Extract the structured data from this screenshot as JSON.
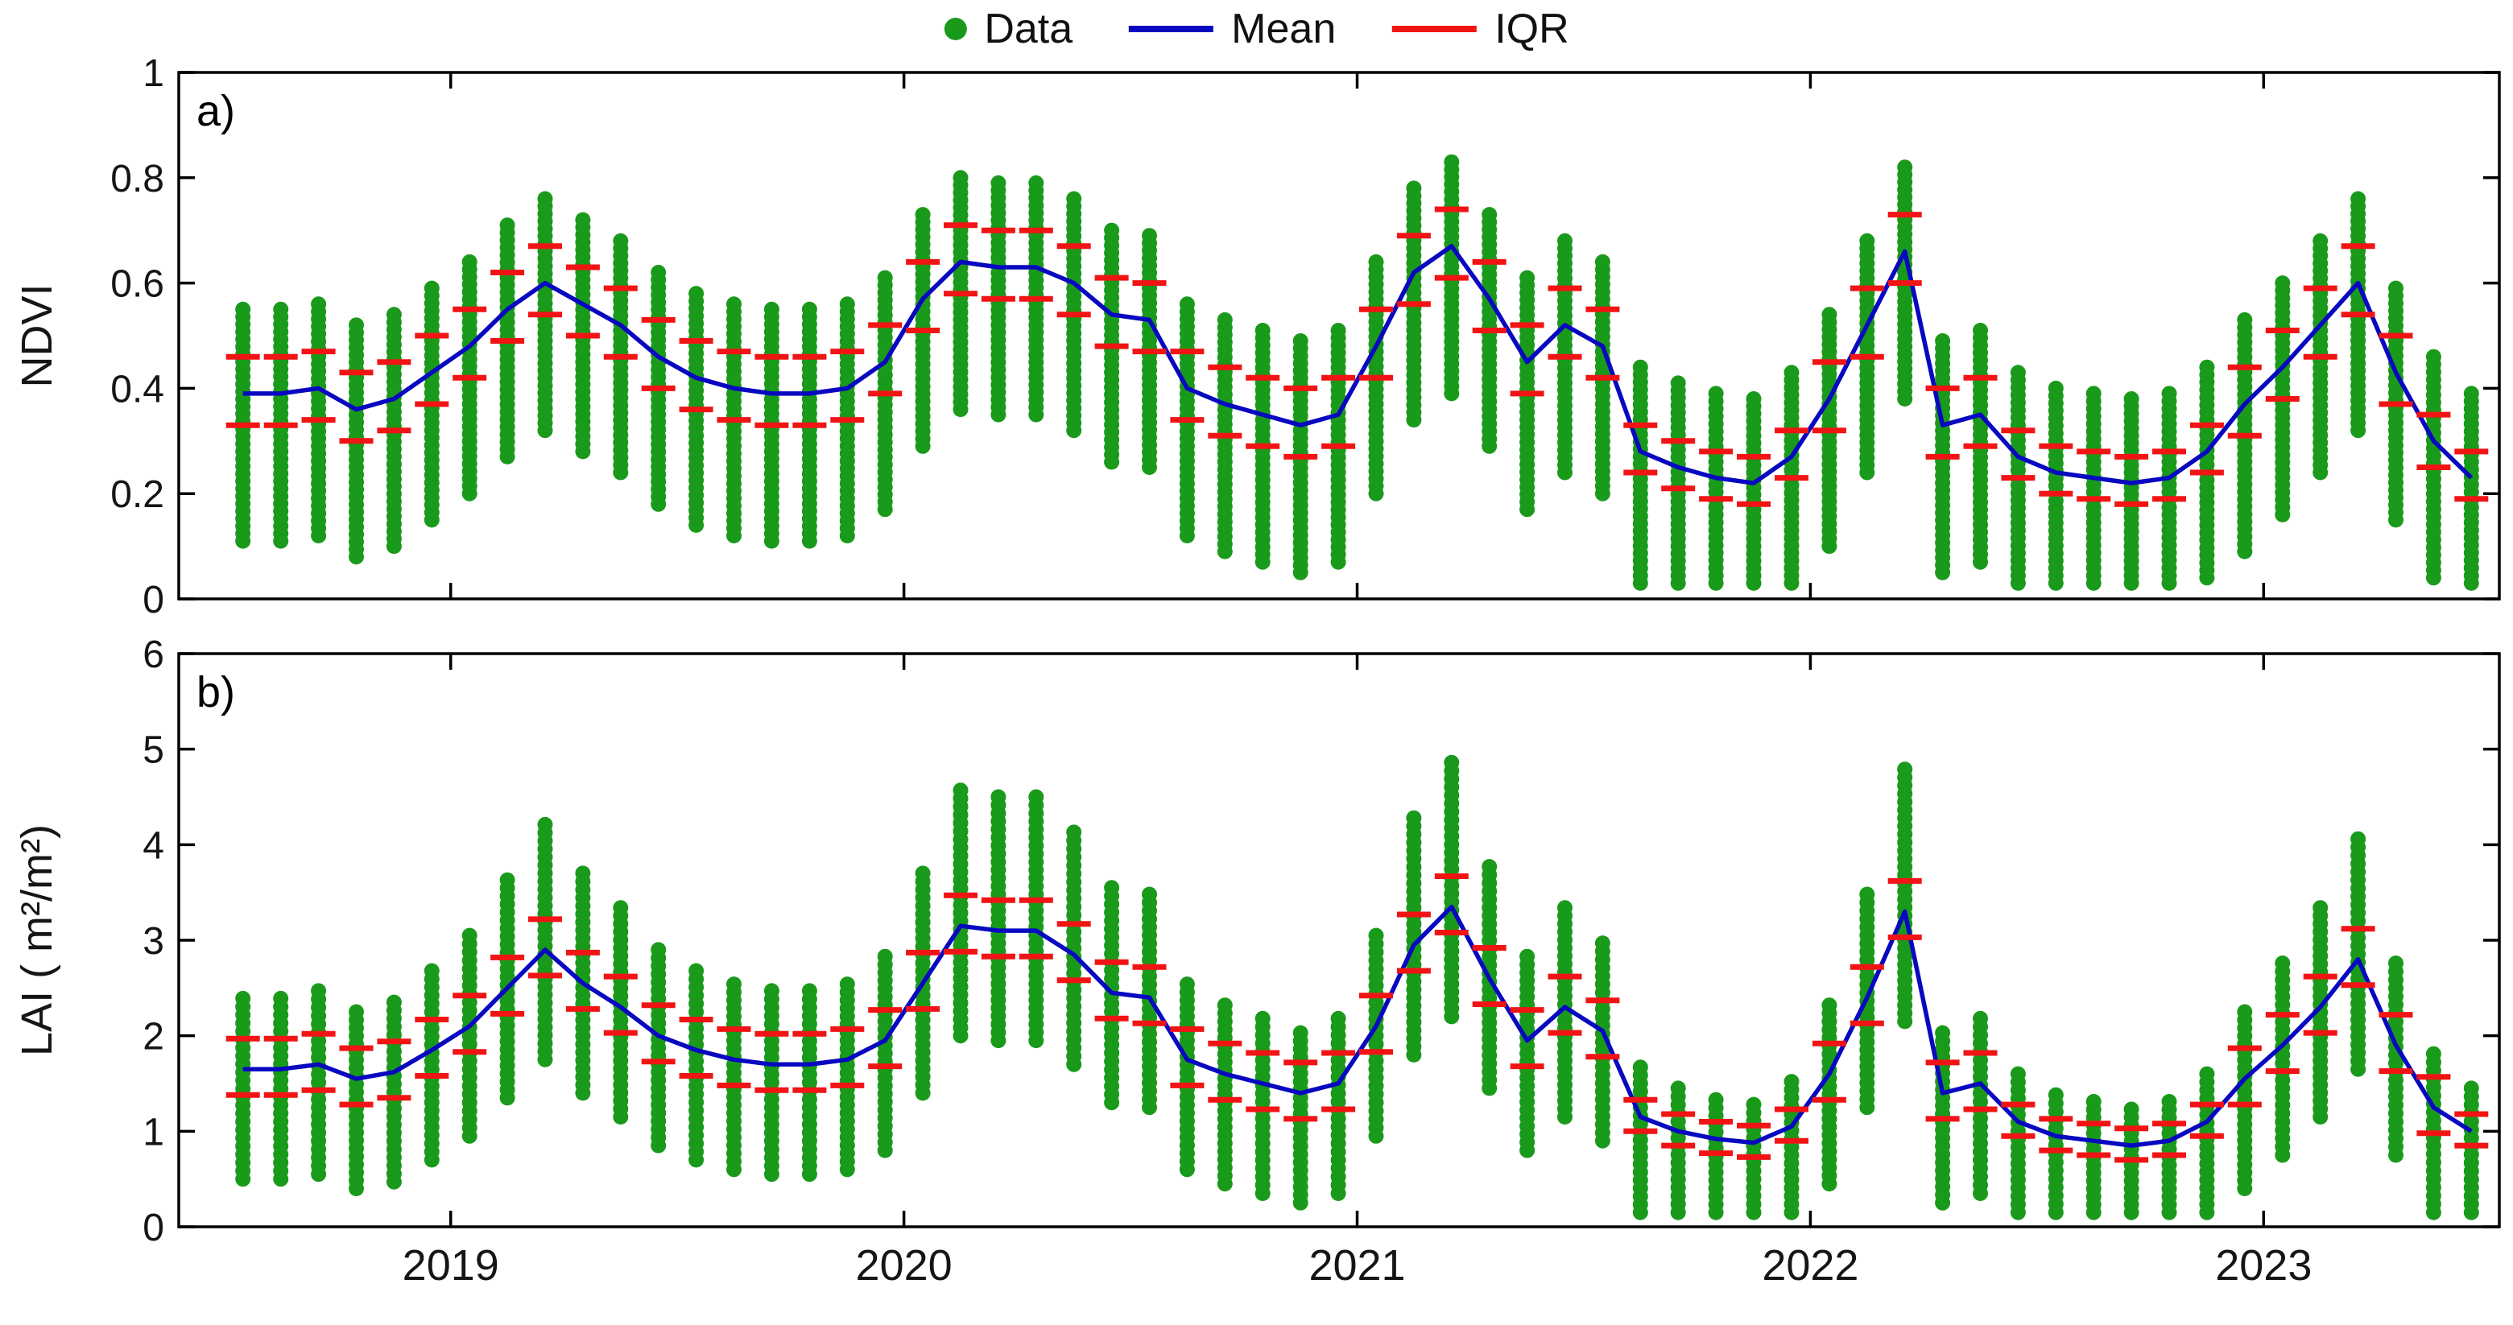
{
  "legend": {
    "items": [
      {
        "label": "Data",
        "marker": "dot",
        "color": "#1a9a1a"
      },
      {
        "label": "Mean",
        "marker": "line",
        "color": "#0808c0"
      },
      {
        "label": "IQR",
        "marker": "line",
        "color": "#f01414"
      }
    ]
  },
  "axis_style": {
    "box_color": "#000000",
    "tick_label_color": "#151515"
  },
  "chart_data": [
    {
      "type": "scatter",
      "panel_label": "a)",
      "ylabel": "NDVI",
      "ylim": [
        0,
        1
      ],
      "yticks": [
        0,
        0.2,
        0.4,
        0.6,
        0.8,
        1
      ],
      "ytick_labels": [
        "0",
        "0.2",
        "0.4",
        "0.6",
        "0.8",
        "1"
      ],
      "xlim": [
        2018.4,
        2023.52
      ],
      "xticks": [
        2019,
        2020,
        2021,
        2022,
        2023
      ],
      "xtick_labels": [
        "2019",
        "2020",
        "2021",
        "2022",
        "2023"
      ],
      "grid": false,
      "legend_position": "top-center",
      "months": [
        "2018-07",
        "2018-08",
        "2018-09",
        "2018-10",
        "2018-11",
        "2018-12",
        "2019-01",
        "2019-02",
        "2019-03",
        "2019-04",
        "2019-05",
        "2019-06",
        "2019-07",
        "2019-08",
        "2019-09",
        "2019-10",
        "2019-11",
        "2019-12",
        "2020-01",
        "2020-02",
        "2020-03",
        "2020-04",
        "2020-05",
        "2020-06",
        "2020-07",
        "2020-08",
        "2020-09",
        "2020-10",
        "2020-11",
        "2020-12",
        "2021-01",
        "2021-02",
        "2021-03",
        "2021-04",
        "2021-05",
        "2021-06",
        "2021-07",
        "2021-08",
        "2021-09",
        "2021-10",
        "2021-11",
        "2021-12",
        "2022-01",
        "2022-02",
        "2022-03",
        "2022-04",
        "2022-05",
        "2022-06",
        "2022-07",
        "2022-08",
        "2022-09",
        "2022-10",
        "2022-11",
        "2022-12",
        "2023-01",
        "2023-02",
        "2023-03",
        "2023-04",
        "2023-05",
        "2023-06"
      ],
      "series": [
        {
          "name": "Data",
          "type": "scatter-column",
          "color": "#1a9a1a",
          "min": [
            0.11,
            0.11,
            0.12,
            0.08,
            0.1,
            0.15,
            0.2,
            0.27,
            0.32,
            0.28,
            0.24,
            0.18,
            0.14,
            0.12,
            0.11,
            0.11,
            0.12,
            0.17,
            0.29,
            0.36,
            0.35,
            0.35,
            0.32,
            0.26,
            0.25,
            0.12,
            0.09,
            0.07,
            0.05,
            0.07,
            0.2,
            0.34,
            0.39,
            0.29,
            0.17,
            0.24,
            0.2,
            0.03,
            0.03,
            0.03,
            0.03,
            0.03,
            0.1,
            0.24,
            0.38,
            0.05,
            0.07,
            0.03,
            0.03,
            0.03,
            0.03,
            0.03,
            0.04,
            0.09,
            0.16,
            0.24,
            0.32,
            0.15,
            0.04,
            0.03
          ],
          "max": [
            0.55,
            0.55,
            0.56,
            0.52,
            0.54,
            0.59,
            0.64,
            0.71,
            0.76,
            0.72,
            0.68,
            0.62,
            0.58,
            0.56,
            0.55,
            0.55,
            0.56,
            0.61,
            0.73,
            0.8,
            0.79,
            0.79,
            0.76,
            0.7,
            0.69,
            0.56,
            0.53,
            0.51,
            0.49,
            0.51,
            0.64,
            0.78,
            0.83,
            0.73,
            0.61,
            0.68,
            0.64,
            0.44,
            0.41,
            0.39,
            0.38,
            0.43,
            0.54,
            0.68,
            0.82,
            0.49,
            0.51,
            0.43,
            0.4,
            0.39,
            0.38,
            0.39,
            0.44,
            0.53,
            0.6,
            0.68,
            0.76,
            0.59,
            0.46,
            0.39
          ]
        },
        {
          "name": "Mean",
          "type": "line",
          "color": "#0808c0",
          "values": [
            0.39,
            0.39,
            0.4,
            0.36,
            0.38,
            0.43,
            0.48,
            0.55,
            0.6,
            0.56,
            0.52,
            0.46,
            0.42,
            0.4,
            0.39,
            0.39,
            0.4,
            0.45,
            0.57,
            0.64,
            0.63,
            0.63,
            0.6,
            0.54,
            0.53,
            0.4,
            0.37,
            0.35,
            0.33,
            0.35,
            0.48,
            0.62,
            0.67,
            0.57,
            0.45,
            0.52,
            0.48,
            0.28,
            0.25,
            0.23,
            0.22,
            0.27,
            0.38,
            0.52,
            0.66,
            0.33,
            0.35,
            0.27,
            0.24,
            0.23,
            0.22,
            0.23,
            0.28,
            0.37,
            0.44,
            0.52,
            0.6,
            0.43,
            0.3,
            0.23
          ]
        },
        {
          "name": "IQR",
          "type": "interval",
          "color": "#f01414",
          "low": [
            0.33,
            0.33,
            0.34,
            0.3,
            0.32,
            0.37,
            0.42,
            0.49,
            0.54,
            0.5,
            0.46,
            0.4,
            0.36,
            0.34,
            0.33,
            0.33,
            0.34,
            0.39,
            0.51,
            0.58,
            0.57,
            0.57,
            0.54,
            0.48,
            0.47,
            0.34,
            0.31,
            0.29,
            0.27,
            0.29,
            0.42,
            0.56,
            0.61,
            0.51,
            0.39,
            0.46,
            0.42,
            0.24,
            0.21,
            0.19,
            0.18,
            0.23,
            0.32,
            0.46,
            0.6,
            0.27,
            0.29,
            0.23,
            0.2,
            0.19,
            0.18,
            0.19,
            0.24,
            0.31,
            0.38,
            0.46,
            0.54,
            0.37,
            0.25,
            0.19
          ],
          "high": [
            0.46,
            0.46,
            0.47,
            0.43,
            0.45,
            0.5,
            0.55,
            0.62,
            0.67,
            0.63,
            0.59,
            0.53,
            0.49,
            0.47,
            0.46,
            0.46,
            0.47,
            0.52,
            0.64,
            0.71,
            0.7,
            0.7,
            0.67,
            0.61,
            0.6,
            0.47,
            0.44,
            0.42,
            0.4,
            0.42,
            0.55,
            0.69,
            0.74,
            0.64,
            0.52,
            0.59,
            0.55,
            0.33,
            0.3,
            0.28,
            0.27,
            0.32,
            0.45,
            0.59,
            0.73,
            0.4,
            0.42,
            0.32,
            0.29,
            0.28,
            0.27,
            0.28,
            0.33,
            0.44,
            0.51,
            0.59,
            0.67,
            0.5,
            0.35,
            0.28
          ]
        }
      ]
    },
    {
      "type": "scatter",
      "panel_label": "b)",
      "ylabel": "LAI ( m²/m²)",
      "ylim": [
        0,
        6
      ],
      "yticks": [
        0,
        1,
        2,
        3,
        4,
        5,
        6
      ],
      "ytick_labels": [
        "0",
        "1",
        "2",
        "3",
        "4",
        "5",
        "6"
      ],
      "xlim": [
        2018.4,
        2023.52
      ],
      "xticks": [
        2019,
        2020,
        2021,
        2022,
        2023
      ],
      "xtick_labels": [
        "2019",
        "2020",
        "2021",
        "2022",
        "2023"
      ],
      "grid": false,
      "months": [
        "2018-07",
        "2018-08",
        "2018-09",
        "2018-10",
        "2018-11",
        "2018-12",
        "2019-01",
        "2019-02",
        "2019-03",
        "2019-04",
        "2019-05",
        "2019-06",
        "2019-07",
        "2019-08",
        "2019-09",
        "2019-10",
        "2019-11",
        "2019-12",
        "2020-01",
        "2020-02",
        "2020-03",
        "2020-04",
        "2020-05",
        "2020-06",
        "2020-07",
        "2020-08",
        "2020-09",
        "2020-10",
        "2020-11",
        "2020-12",
        "2021-01",
        "2021-02",
        "2021-03",
        "2021-04",
        "2021-05",
        "2021-06",
        "2021-07",
        "2021-08",
        "2021-09",
        "2021-10",
        "2021-11",
        "2021-12",
        "2022-01",
        "2022-02",
        "2022-03",
        "2022-04",
        "2022-05",
        "2022-06",
        "2022-07",
        "2022-08",
        "2022-09",
        "2022-10",
        "2022-11",
        "2022-12",
        "2023-01",
        "2023-02",
        "2023-03",
        "2023-04",
        "2023-05",
        "2023-06"
      ],
      "series": [
        {
          "name": "Data",
          "type": "scatter-column",
          "color": "#1a9a1a",
          "min": [
            0.5,
            0.5,
            0.55,
            0.4,
            0.47,
            0.7,
            0.95,
            1.35,
            1.75,
            1.4,
            1.15,
            0.85,
            0.7,
            0.6,
            0.55,
            0.55,
            0.6,
            0.8,
            1.4,
            2.0,
            1.95,
            1.95,
            1.7,
            1.3,
            1.25,
            0.6,
            0.45,
            0.35,
            0.25,
            0.35,
            0.95,
            1.8,
            2.2,
            1.45,
            0.8,
            1.15,
            0.9,
            0.15,
            0.15,
            0.15,
            0.15,
            0.15,
            0.45,
            1.25,
            2.15,
            0.25,
            0.35,
            0.15,
            0.15,
            0.15,
            0.15,
            0.15,
            0.15,
            0.4,
            0.75,
            1.15,
            1.65,
            0.75,
            0.15,
            0.15
          ],
          "max": [
            2.39,
            2.39,
            2.47,
            2.25,
            2.35,
            2.68,
            3.05,
            3.63,
            4.21,
            3.7,
            3.34,
            2.9,
            2.68,
            2.54,
            2.47,
            2.47,
            2.54,
            2.83,
            3.7,
            4.57,
            4.5,
            4.5,
            4.13,
            3.55,
            3.48,
            2.54,
            2.32,
            2.18,
            2.03,
            2.18,
            3.05,
            4.28,
            4.86,
            3.77,
            2.83,
            3.34,
            2.97,
            1.67,
            1.45,
            1.33,
            1.28,
            1.52,
            2.32,
            3.48,
            4.79,
            2.03,
            2.18,
            1.6,
            1.38,
            1.31,
            1.23,
            1.31,
            1.6,
            2.25,
            2.76,
            3.34,
            4.06,
            2.76,
            1.81,
            1.45
          ]
        },
        {
          "name": "Mean",
          "type": "line",
          "color": "#0808c0",
          "values": [
            1.65,
            1.65,
            1.7,
            1.55,
            1.62,
            1.85,
            2.1,
            2.5,
            2.9,
            2.55,
            2.3,
            2.0,
            1.85,
            1.75,
            1.7,
            1.7,
            1.75,
            1.95,
            2.55,
            3.15,
            3.1,
            3.1,
            2.85,
            2.45,
            2.4,
            1.75,
            1.6,
            1.5,
            1.4,
            1.5,
            2.1,
            2.95,
            3.35,
            2.6,
            1.95,
            2.3,
            2.05,
            1.15,
            1.0,
            0.92,
            0.88,
            1.05,
            1.6,
            2.4,
            3.3,
            1.4,
            1.5,
            1.1,
            0.95,
            0.9,
            0.85,
            0.9,
            1.1,
            1.55,
            1.9,
            2.3,
            2.8,
            1.9,
            1.25,
            1.0
          ]
        },
        {
          "name": "IQR",
          "type": "interval",
          "color": "#f01414",
          "low": [
            1.38,
            1.38,
            1.43,
            1.28,
            1.35,
            1.58,
            1.83,
            2.23,
            2.63,
            2.28,
            2.03,
            1.73,
            1.58,
            1.48,
            1.43,
            1.43,
            1.48,
            1.68,
            2.28,
            2.88,
            2.83,
            2.83,
            2.58,
            2.18,
            2.13,
            1.48,
            1.33,
            1.23,
            1.13,
            1.23,
            1.83,
            2.68,
            3.08,
            2.33,
            1.68,
            2.03,
            1.78,
            1.0,
            0.85,
            0.77,
            0.73,
            0.9,
            1.33,
            2.13,
            3.03,
            1.13,
            1.23,
            0.95,
            0.8,
            0.75,
            0.7,
            0.75,
            0.95,
            1.28,
            1.63,
            2.03,
            2.53,
            1.63,
            0.98,
            0.85
          ],
          "high": [
            1.97,
            1.97,
            2.02,
            1.87,
            1.94,
            2.17,
            2.42,
            2.82,
            3.22,
            2.87,
            2.62,
            2.32,
            2.17,
            2.07,
            2.02,
            2.02,
            2.07,
            2.27,
            2.87,
            3.47,
            3.42,
            3.42,
            3.17,
            2.77,
            2.72,
            2.07,
            1.92,
            1.82,
            1.72,
            1.82,
            2.42,
            3.27,
            3.67,
            2.92,
            2.27,
            2.62,
            2.37,
            1.33,
            1.18,
            1.1,
            1.06,
            1.23,
            1.92,
            2.72,
            3.62,
            1.72,
            1.82,
            1.28,
            1.13,
            1.08,
            1.03,
            1.08,
            1.28,
            1.87,
            2.22,
            2.62,
            3.12,
            2.22,
            1.57,
            1.18
          ]
        }
      ]
    }
  ]
}
